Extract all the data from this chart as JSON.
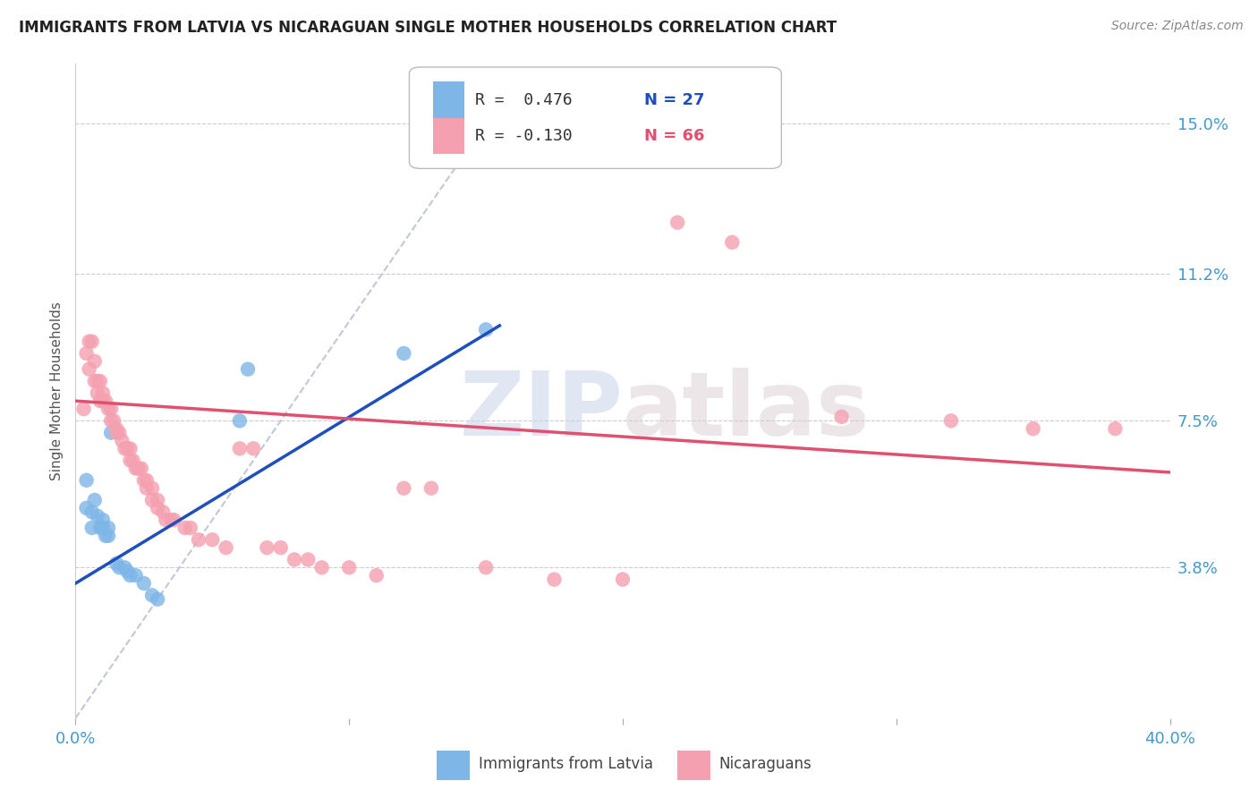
{
  "title": "IMMIGRANTS FROM LATVIA VS NICARAGUAN SINGLE MOTHER HOUSEHOLDS CORRELATION CHART",
  "source": "Source: ZipAtlas.com",
  "ylabel": "Single Mother Households",
  "ytick_labels": [
    "3.8%",
    "7.5%",
    "11.2%",
    "15.0%"
  ],
  "ytick_values": [
    0.038,
    0.075,
    0.112,
    0.15
  ],
  "xlim": [
    0.0,
    0.4
  ],
  "ylim": [
    0.0,
    0.165
  ],
  "legend_blue_r": "R =  0.476",
  "legend_blue_n": "N = 27",
  "legend_pink_r": "R = -0.130",
  "legend_pink_n": "N = 66",
  "blue_color": "#7EB6E8",
  "pink_color": "#F4A0B0",
  "blue_line_color": "#1E4FBF",
  "pink_line_color": "#E05070",
  "diagonal_color": "#C0C8D8",
  "watermark_zip": "ZIP",
  "watermark_atlas": "atlas",
  "blue_points": [
    [
      0.004,
      0.06
    ],
    [
      0.004,
      0.053
    ],
    [
      0.006,
      0.052
    ],
    [
      0.006,
      0.048
    ],
    [
      0.007,
      0.055
    ],
    [
      0.008,
      0.051
    ],
    [
      0.009,
      0.048
    ],
    [
      0.01,
      0.05
    ],
    [
      0.01,
      0.048
    ],
    [
      0.01,
      0.048
    ],
    [
      0.011,
      0.046
    ],
    [
      0.012,
      0.046
    ],
    [
      0.012,
      0.048
    ],
    [
      0.013,
      0.072
    ],
    [
      0.015,
      0.039
    ],
    [
      0.016,
      0.038
    ],
    [
      0.018,
      0.038
    ],
    [
      0.019,
      0.037
    ],
    [
      0.02,
      0.036
    ],
    [
      0.022,
      0.036
    ],
    [
      0.025,
      0.034
    ],
    [
      0.028,
      0.031
    ],
    [
      0.03,
      0.03
    ],
    [
      0.06,
      0.075
    ],
    [
      0.063,
      0.088
    ],
    [
      0.12,
      0.092
    ],
    [
      0.15,
      0.098
    ]
  ],
  "pink_points": [
    [
      0.003,
      0.078
    ],
    [
      0.004,
      0.092
    ],
    [
      0.005,
      0.088
    ],
    [
      0.005,
      0.095
    ],
    [
      0.006,
      0.095
    ],
    [
      0.007,
      0.09
    ],
    [
      0.007,
      0.085
    ],
    [
      0.008,
      0.085
    ],
    [
      0.008,
      0.082
    ],
    [
      0.009,
      0.085
    ],
    [
      0.009,
      0.08
    ],
    [
      0.01,
      0.082
    ],
    [
      0.01,
      0.08
    ],
    [
      0.011,
      0.08
    ],
    [
      0.012,
      0.078
    ],
    [
      0.013,
      0.078
    ],
    [
      0.013,
      0.075
    ],
    [
      0.014,
      0.075
    ],
    [
      0.015,
      0.073
    ],
    [
      0.015,
      0.072
    ],
    [
      0.016,
      0.072
    ],
    [
      0.017,
      0.07
    ],
    [
      0.018,
      0.068
    ],
    [
      0.019,
      0.068
    ],
    [
      0.02,
      0.068
    ],
    [
      0.02,
      0.065
    ],
    [
      0.021,
      0.065
    ],
    [
      0.022,
      0.063
    ],
    [
      0.023,
      0.063
    ],
    [
      0.024,
      0.063
    ],
    [
      0.025,
      0.06
    ],
    [
      0.026,
      0.06
    ],
    [
      0.026,
      0.058
    ],
    [
      0.028,
      0.058
    ],
    [
      0.028,
      0.055
    ],
    [
      0.03,
      0.055
    ],
    [
      0.03,
      0.053
    ],
    [
      0.032,
      0.052
    ],
    [
      0.033,
      0.05
    ],
    [
      0.035,
      0.05
    ],
    [
      0.036,
      0.05
    ],
    [
      0.04,
      0.048
    ],
    [
      0.042,
      0.048
    ],
    [
      0.045,
      0.045
    ],
    [
      0.05,
      0.045
    ],
    [
      0.055,
      0.043
    ],
    [
      0.06,
      0.068
    ],
    [
      0.065,
      0.068
    ],
    [
      0.07,
      0.043
    ],
    [
      0.075,
      0.043
    ],
    [
      0.08,
      0.04
    ],
    [
      0.085,
      0.04
    ],
    [
      0.09,
      0.038
    ],
    [
      0.1,
      0.038
    ],
    [
      0.11,
      0.036
    ],
    [
      0.12,
      0.058
    ],
    [
      0.13,
      0.058
    ],
    [
      0.15,
      0.038
    ],
    [
      0.175,
      0.035
    ],
    [
      0.2,
      0.035
    ],
    [
      0.22,
      0.125
    ],
    [
      0.24,
      0.12
    ],
    [
      0.28,
      0.076
    ],
    [
      0.32,
      0.075
    ],
    [
      0.35,
      0.073
    ],
    [
      0.38,
      0.073
    ]
  ],
  "blue_line": {
    "x0": 0.0,
    "y0": 0.034,
    "x1": 0.155,
    "y1": 0.099
  },
  "pink_line": {
    "x0": 0.0,
    "y0": 0.08,
    "x1": 0.4,
    "y1": 0.062
  },
  "diag_line": {
    "x0": 0.0,
    "y0": 0.0,
    "x1": 0.155,
    "y1": 0.155
  }
}
